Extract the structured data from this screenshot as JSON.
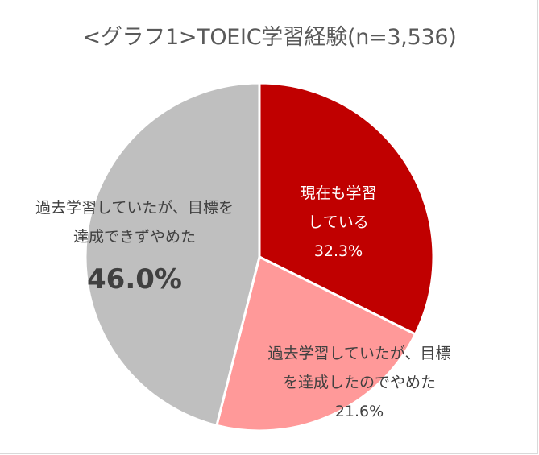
{
  "chart_data": {
    "type": "pie",
    "title": "<グラフ1>TOEIC学習経験(n=3,536)",
    "start_angle": "12 o'clock, clockwise",
    "slices": [
      {
        "label": "現在も学習している",
        "label_lines": [
          "現在も学習",
          "している"
        ],
        "value": 32.3,
        "value_label": "32.3%",
        "color": "#C00000",
        "text_color": "#FFFFFF"
      },
      {
        "label": "過去学習していたが、目標を達成したのでやめた",
        "label_lines": [
          "過去学習していたが、目標",
          "を達成したのでやめた"
        ],
        "value": 21.6,
        "value_label": "21.6%",
        "color": "#FF9999",
        "text_color": "#404040"
      },
      {
        "label": "過去学習していたが、目標を達成できずやめた",
        "label_lines": [
          "過去学習していたが、目標を",
          "達成できずやめた"
        ],
        "value": 46.0,
        "value_label": "46.0%",
        "color": "#BFBFBF",
        "text_color": "#404040",
        "emphasized": true
      }
    ],
    "legend": "none",
    "slice_border_color": "#FFFFFF"
  }
}
